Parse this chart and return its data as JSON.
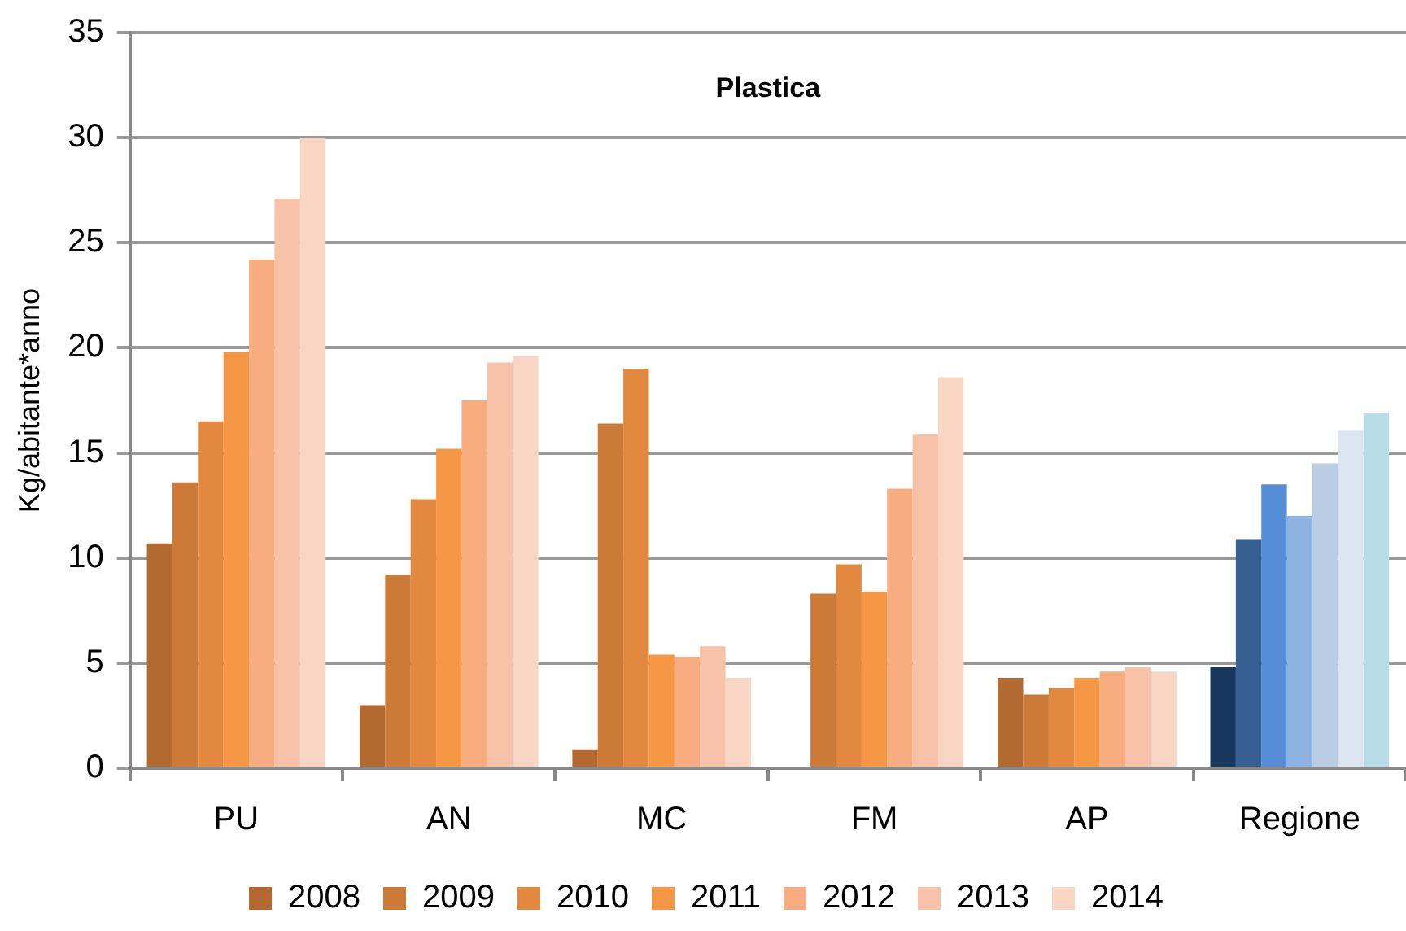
{
  "chart_data": {
    "type": "bar",
    "title": "Plastica",
    "ylabel": "Kg/abitante*anno",
    "categories": [
      "PU",
      "AN",
      "MC",
      "FM",
      "AP",
      "Regione"
    ],
    "series": [
      {
        "name": "2008",
        "color": "#b36a30",
        "colors": [
          "#b36a30",
          "#b36a30",
          "#b36a30",
          "#b36a30",
          "#b36a30",
          "#17375e"
        ],
        "values": [
          10.7,
          3.0,
          0.9,
          null,
          4.3,
          4.8
        ]
      },
      {
        "name": "2009",
        "color": "#cb7a37",
        "colors": [
          "#cb7a37",
          "#cb7a37",
          "#cb7a37",
          "#cb7a37",
          "#cb7a37",
          "#366092"
        ],
        "values": [
          13.6,
          9.2,
          16.4,
          8.3,
          3.5,
          10.9
        ]
      },
      {
        "name": "2010",
        "color": "#e2883f",
        "colors": [
          "#e2883f",
          "#e2883f",
          "#e2883f",
          "#e2883f",
          "#e2883f",
          "#558ed5"
        ],
        "values": [
          16.5,
          12.8,
          19.0,
          9.7,
          3.8,
          13.5
        ]
      },
      {
        "name": "2011",
        "color": "#f59745",
        "colors": [
          "#f59745",
          "#f59745",
          "#f59745",
          "#f59745",
          "#f59745",
          "#8db3e2"
        ],
        "values": [
          19.8,
          15.2,
          5.4,
          8.4,
          4.3,
          12.0
        ]
      },
      {
        "name": "2012",
        "color": "#f7ad7f",
        "colors": [
          "#f7ad7f",
          "#f7ad7f",
          "#f7ad7f",
          "#f7ad7f",
          "#f7ad7f",
          "#b9cde5"
        ],
        "values": [
          24.2,
          17.5,
          5.3,
          13.3,
          4.6,
          14.5
        ]
      },
      {
        "name": "2013",
        "color": "#f8c2a8",
        "colors": [
          "#f8c2a8",
          "#f8c2a8",
          "#f8c2a8",
          "#f8c2a8",
          "#f8c2a8",
          "#dce6f2"
        ],
        "values": [
          27.1,
          19.3,
          5.8,
          15.9,
          4.8,
          16.1
        ]
      },
      {
        "name": "2014",
        "color": "#f9d5c3",
        "colors": [
          "#f9d5c3",
          "#f9d5c3",
          "#f9d5c3",
          "#f9d5c3",
          "#f9d5c3",
          "#b7dde8"
        ],
        "values": [
          30.0,
          19.6,
          4.3,
          18.6,
          4.6,
          16.9
        ]
      }
    ],
    "ylim": [
      0,
      35
    ],
    "yticks": [
      0,
      5,
      10,
      15,
      20,
      25,
      30,
      35
    ],
    "grid": "y",
    "legend": "bottom"
  }
}
